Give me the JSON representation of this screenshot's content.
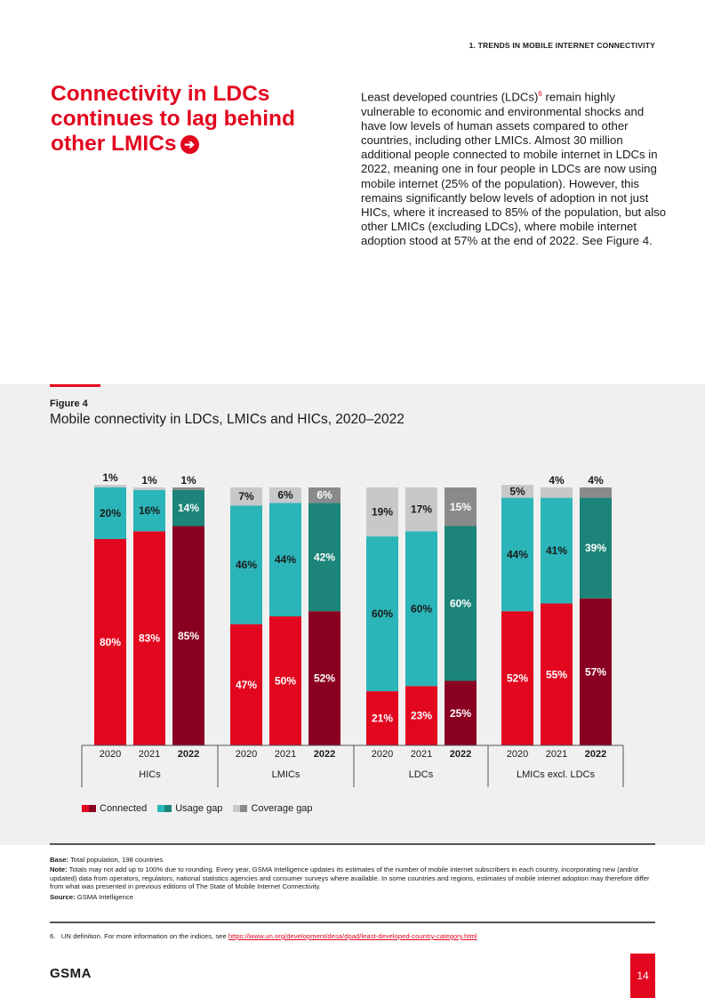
{
  "header": {
    "section_label": "1. TRENDS IN MOBILE INTERNET CONNECTIVITY"
  },
  "headline": {
    "text": "Connectivity in LDCs continues to lag behind other LMICs",
    "arrow_icon": "arrow-right-circle-icon",
    "glyph": "➔"
  },
  "intro": {
    "part1": "Least developed countries (LDCs)",
    "footnote_ref": "6",
    "part2": " remain highly vulnerable to economic and environmental shocks and have low levels of human assets compared to other countries, including other LMICs. Almost 30 million additional people connected to mobile internet in LDCs in 2022, meaning one in four people in LDCs are now using mobile internet (25% of the population). However, this remains significantly below levels of adoption in not just HICs, where it increased to 85% of the population, but also other LMICs (excluding LDCs), where mobile internet adoption stood at 57% at the end of 2022. See Figure 4."
  },
  "figure": {
    "label": "Figure 4",
    "title": "Mobile connectivity in LDCs, LMICs and HICs, 2020–2022"
  },
  "chart_data": {
    "type": "bar",
    "stacked": true,
    "ylim": [
      0,
      100
    ],
    "groups": [
      {
        "name": "HICs",
        "years": [
          {
            "year": "2020",
            "bold": false,
            "connected": 80,
            "usage_gap": 20,
            "coverage_gap": 1
          },
          {
            "year": "2021",
            "bold": false,
            "connected": 83,
            "usage_gap": 16,
            "coverage_gap": 1
          },
          {
            "year": "2022",
            "bold": true,
            "connected": 85,
            "usage_gap": 14,
            "coverage_gap": 1
          }
        ]
      },
      {
        "name": "LMICs",
        "years": [
          {
            "year": "2020",
            "bold": false,
            "connected": 47,
            "usage_gap": 46,
            "coverage_gap": 7
          },
          {
            "year": "2021",
            "bold": false,
            "connected": 50,
            "usage_gap": 44,
            "coverage_gap": 6
          },
          {
            "year": "2022",
            "bold": true,
            "connected": 52,
            "usage_gap": 42,
            "coverage_gap": 6
          }
        ]
      },
      {
        "name": "LDCs",
        "years": [
          {
            "year": "2020",
            "bold": false,
            "connected": 21,
            "usage_gap": 60,
            "coverage_gap": 19
          },
          {
            "year": "2021",
            "bold": false,
            "connected": 23,
            "usage_gap": 60,
            "coverage_gap": 17
          },
          {
            "year": "2022",
            "bold": true,
            "connected": 25,
            "usage_gap": 60,
            "coverage_gap": 15
          }
        ]
      },
      {
        "name": "LMICs excl. LDCs",
        "years": [
          {
            "year": "2020",
            "bold": false,
            "connected": 52,
            "usage_gap": 44,
            "coverage_gap": 5
          },
          {
            "year": "2021",
            "bold": false,
            "connected": 55,
            "usage_gap": 41,
            "coverage_gap": 4
          },
          {
            "year": "2022",
            "bold": true,
            "connected": 57,
            "usage_gap": 39,
            "coverage_gap": 4
          }
        ]
      }
    ],
    "legend": [
      {
        "key": "connected",
        "label": "Connected",
        "colors": [
          "#e2061f",
          "#8a0021"
        ]
      },
      {
        "key": "usage_gap",
        "label": "Usage gap",
        "colors": [
          "#2bb5b8",
          "#1c8478"
        ]
      },
      {
        "key": "coverage_gap",
        "label": "Coverage gap",
        "colors": [
          "#c6c8ca",
          "#8a8a8a"
        ]
      }
    ],
    "value_suffix": "%"
  },
  "notes": {
    "base_label": "Base:",
    "base_text": " Total population, 198 countries",
    "note_label": "Note:",
    "note_text": " Totals may not add up to 100% due to rounding. Every year, GSMA Intelligence updates its estimates of the number of mobile internet subscribers in each country, incorporating new (and/or updated) data from operators, regulators, national statistics agencies and consumer surveys where available. In some countries and regions, estimates of mobile internet adoption may therefore differ from what was presented in previous editions of The State of Mobile Internet Connectivity.",
    "source_label": "Source:",
    "source_text": " GSMA Intelligence"
  },
  "footnote": {
    "number": "6.",
    "text": "UN definition. For more information on the indices, see ",
    "link": "https://www.un.org/development/desa/dpad/least-developed-country-category.html"
  },
  "footer": {
    "logo": "GSMA",
    "page_number": "14"
  }
}
